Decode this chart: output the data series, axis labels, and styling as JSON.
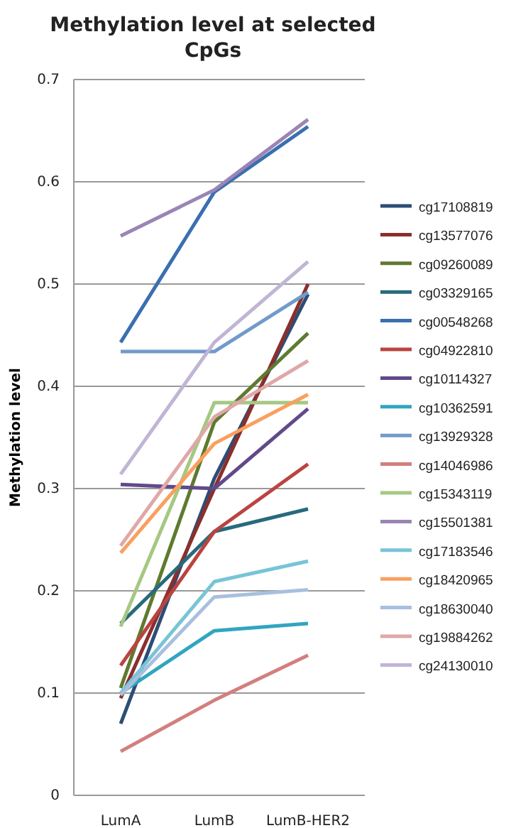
{
  "chart_data": {
    "type": "line",
    "title": "Methylation level at selected CpGs",
    "ylabel": "Methylation level",
    "categories": [
      "LumA",
      "LumB",
      "LumB-HER2"
    ],
    "ylim": [
      0,
      0.7
    ],
    "yticks": [
      0,
      0.1,
      0.2,
      0.3,
      0.4,
      0.5,
      0.6,
      0.7
    ],
    "grid": "y",
    "legend": "right",
    "marker": "none",
    "line_style": "solid",
    "series": [
      {
        "name": "cg17108819",
        "color": "#2c4d75",
        "values": [
          0.07,
          0.31,
          0.49
        ]
      },
      {
        "name": "cg13577076",
        "color": "#8b2f2c",
        "values": [
          0.095,
          0.3,
          0.5
        ]
      },
      {
        "name": "cg09260089",
        "color": "#5f7a30",
        "values": [
          0.105,
          0.365,
          0.452
        ]
      },
      {
        "name": "cg03329165",
        "color": "#276a7c",
        "values": [
          0.168,
          0.258,
          0.28
        ]
      },
      {
        "name": "cg00548268",
        "color": "#3a6fb0",
        "values": [
          0.443,
          0.59,
          0.654
        ]
      },
      {
        "name": "cg04922810",
        "color": "#b94441",
        "values": [
          0.127,
          0.258,
          0.324
        ]
      },
      {
        "name": "cg10114327",
        "color": "#604a8b",
        "values": [
          0.304,
          0.3,
          0.378
        ]
      },
      {
        "name": "cg10362591",
        "color": "#31a5c0",
        "values": [
          0.1,
          0.161,
          0.168
        ]
      },
      {
        "name": "cg13929328",
        "color": "#729aca",
        "values": [
          0.434,
          0.434,
          0.492
        ]
      },
      {
        "name": "cg14046986",
        "color": "#d27f7e",
        "values": [
          0.043,
          0.093,
          0.137
        ]
      },
      {
        "name": "cg15343119",
        "color": "#a5c882",
        "values": [
          0.165,
          0.384,
          0.384
        ]
      },
      {
        "name": "cg15501381",
        "color": "#9a85b5",
        "values": [
          0.547,
          0.592,
          0.661
        ]
      },
      {
        "name": "cg17183546",
        "color": "#77c4d8",
        "values": [
          0.1,
          0.209,
          0.229
        ]
      },
      {
        "name": "cg18420965",
        "color": "#f9a05f",
        "values": [
          0.237,
          0.344,
          0.392
        ]
      },
      {
        "name": "cg18630040",
        "color": "#a8bfdf",
        "values": [
          0.098,
          0.194,
          0.201
        ]
      },
      {
        "name": "cg19884262",
        "color": "#dfa8a8",
        "values": [
          0.244,
          0.37,
          0.425
        ]
      },
      {
        "name": "cg24130010",
        "color": "#c0b5d4",
        "values": [
          0.314,
          0.443,
          0.522
        ]
      }
    ]
  }
}
